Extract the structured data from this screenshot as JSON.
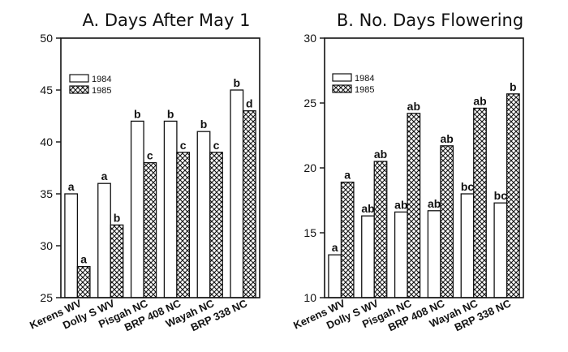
{
  "chart_data": [
    {
      "type": "bar",
      "title": "A.  Days After May 1",
      "categories": [
        "Kerens WV",
        "Dolly S WV",
        "Pisgah NC",
        "BRP 408 NC",
        "Wayah NC",
        "BRP 338 NC"
      ],
      "ylim": [
        25,
        50
      ],
      "yticks": [
        25,
        30,
        35,
        40,
        45,
        50
      ],
      "xlabel": "",
      "ylabel": "",
      "legend_position": "top-left",
      "series": [
        {
          "name": "1984",
          "pattern": "open",
          "values": [
            35,
            36,
            42,
            42,
            41,
            45
          ],
          "labels": [
            "a",
            "a",
            "b",
            "b",
            "b",
            "b"
          ]
        },
        {
          "name": "1985",
          "pattern": "crosshatch",
          "values": [
            28,
            32,
            38,
            39,
            39,
            43
          ],
          "labels": [
            "a",
            "b",
            "c",
            "c",
            "c",
            "d"
          ]
        }
      ]
    },
    {
      "type": "bar",
      "title": "B.  No. Days Flowering",
      "categories": [
        "Kerens WV",
        "Dolly S WV",
        "Pisgah NC",
        "BRP 408 NC",
        "Wayah NC",
        "BRP 338 NC"
      ],
      "ylim": [
        10,
        30
      ],
      "yticks": [
        10,
        15,
        20,
        25,
        30
      ],
      "xlabel": "",
      "ylabel": "",
      "legend_position": "top-left",
      "series": [
        {
          "name": "1984",
          "pattern": "open",
          "values": [
            13.3,
            16.3,
            16.6,
            16.7,
            18.0,
            17.3
          ],
          "labels": [
            "a",
            "ab",
            "ab",
            "ab",
            "bc",
            "bc"
          ]
        },
        {
          "name": "1985",
          "pattern": "crosshatch",
          "values": [
            18.9,
            20.5,
            24.2,
            21.7,
            24.6,
            25.7
          ],
          "labels": [
            "a",
            "ab",
            "ab",
            "ab",
            "ab",
            "b"
          ]
        }
      ]
    }
  ]
}
